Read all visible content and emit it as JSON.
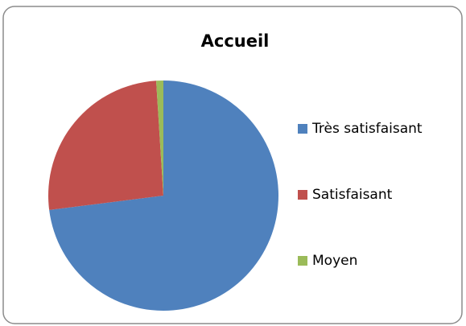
{
  "chart_data": {
    "type": "pie",
    "title": "Accueil",
    "categories": [
      "Très satisfaisant",
      "Satisfaisant",
      "Moyen"
    ],
    "values": [
      73,
      26,
      1
    ],
    "colors": [
      "#4f81bd",
      "#c0504d",
      "#9bbb59"
    ],
    "legend": "right"
  }
}
